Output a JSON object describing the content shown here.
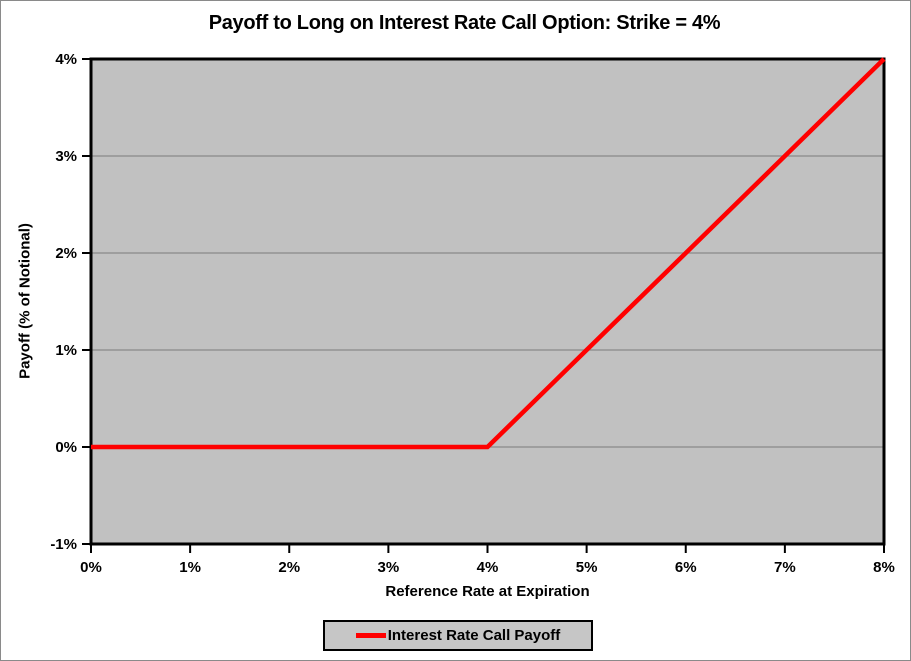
{
  "frame": {
    "background": "#ffffff",
    "border_color": "#8a8a8a"
  },
  "chart_data": {
    "type": "line",
    "title": "Payoff to Long on Interest Rate Call Option: Strike = 4%",
    "xlabel": "Reference Rate at Expiration",
    "ylabel": "Payoff (% of Notional)",
    "xlim": [
      0,
      8
    ],
    "ylim": [
      -1,
      4
    ],
    "grid": "horizontal-major-only",
    "plot_background": "#c1c1c1",
    "gridline_color": "#8a8a8a",
    "axis_color": "#000000",
    "x_ticks": [
      {
        "value": 0,
        "label": "0%"
      },
      {
        "value": 1,
        "label": "1%"
      },
      {
        "value": 2,
        "label": "2%"
      },
      {
        "value": 3,
        "label": "3%"
      },
      {
        "value": 4,
        "label": "4%"
      },
      {
        "value": 5,
        "label": "5%"
      },
      {
        "value": 6,
        "label": "6%"
      },
      {
        "value": 7,
        "label": "7%"
      },
      {
        "value": 8,
        "label": "8%"
      }
    ],
    "y_ticks": [
      {
        "value": -1,
        "label": "-1%"
      },
      {
        "value": 0,
        "label": "0%"
      },
      {
        "value": 1,
        "label": "1%"
      },
      {
        "value": 2,
        "label": "2%"
      },
      {
        "value": 3,
        "label": "3%"
      },
      {
        "value": 4,
        "label": "4%"
      }
    ],
    "series": [
      {
        "name": "Interest Rate Call Payoff",
        "color": "#ff0000",
        "points": [
          {
            "x": 0,
            "y": 0
          },
          {
            "x": 1,
            "y": 0
          },
          {
            "x": 2,
            "y": 0
          },
          {
            "x": 3,
            "y": 0
          },
          {
            "x": 4,
            "y": 0
          },
          {
            "x": 5,
            "y": 1
          },
          {
            "x": 6,
            "y": 2
          },
          {
            "x": 7,
            "y": 3
          },
          {
            "x": 8,
            "y": 4
          }
        ]
      }
    ],
    "legend": {
      "position": "bottom-center",
      "background": "#c6c6c6",
      "border_color": "#000000",
      "entries": [
        {
          "label": "Interest Rate Call Payoff",
          "color": "#ff0000"
        }
      ]
    }
  }
}
